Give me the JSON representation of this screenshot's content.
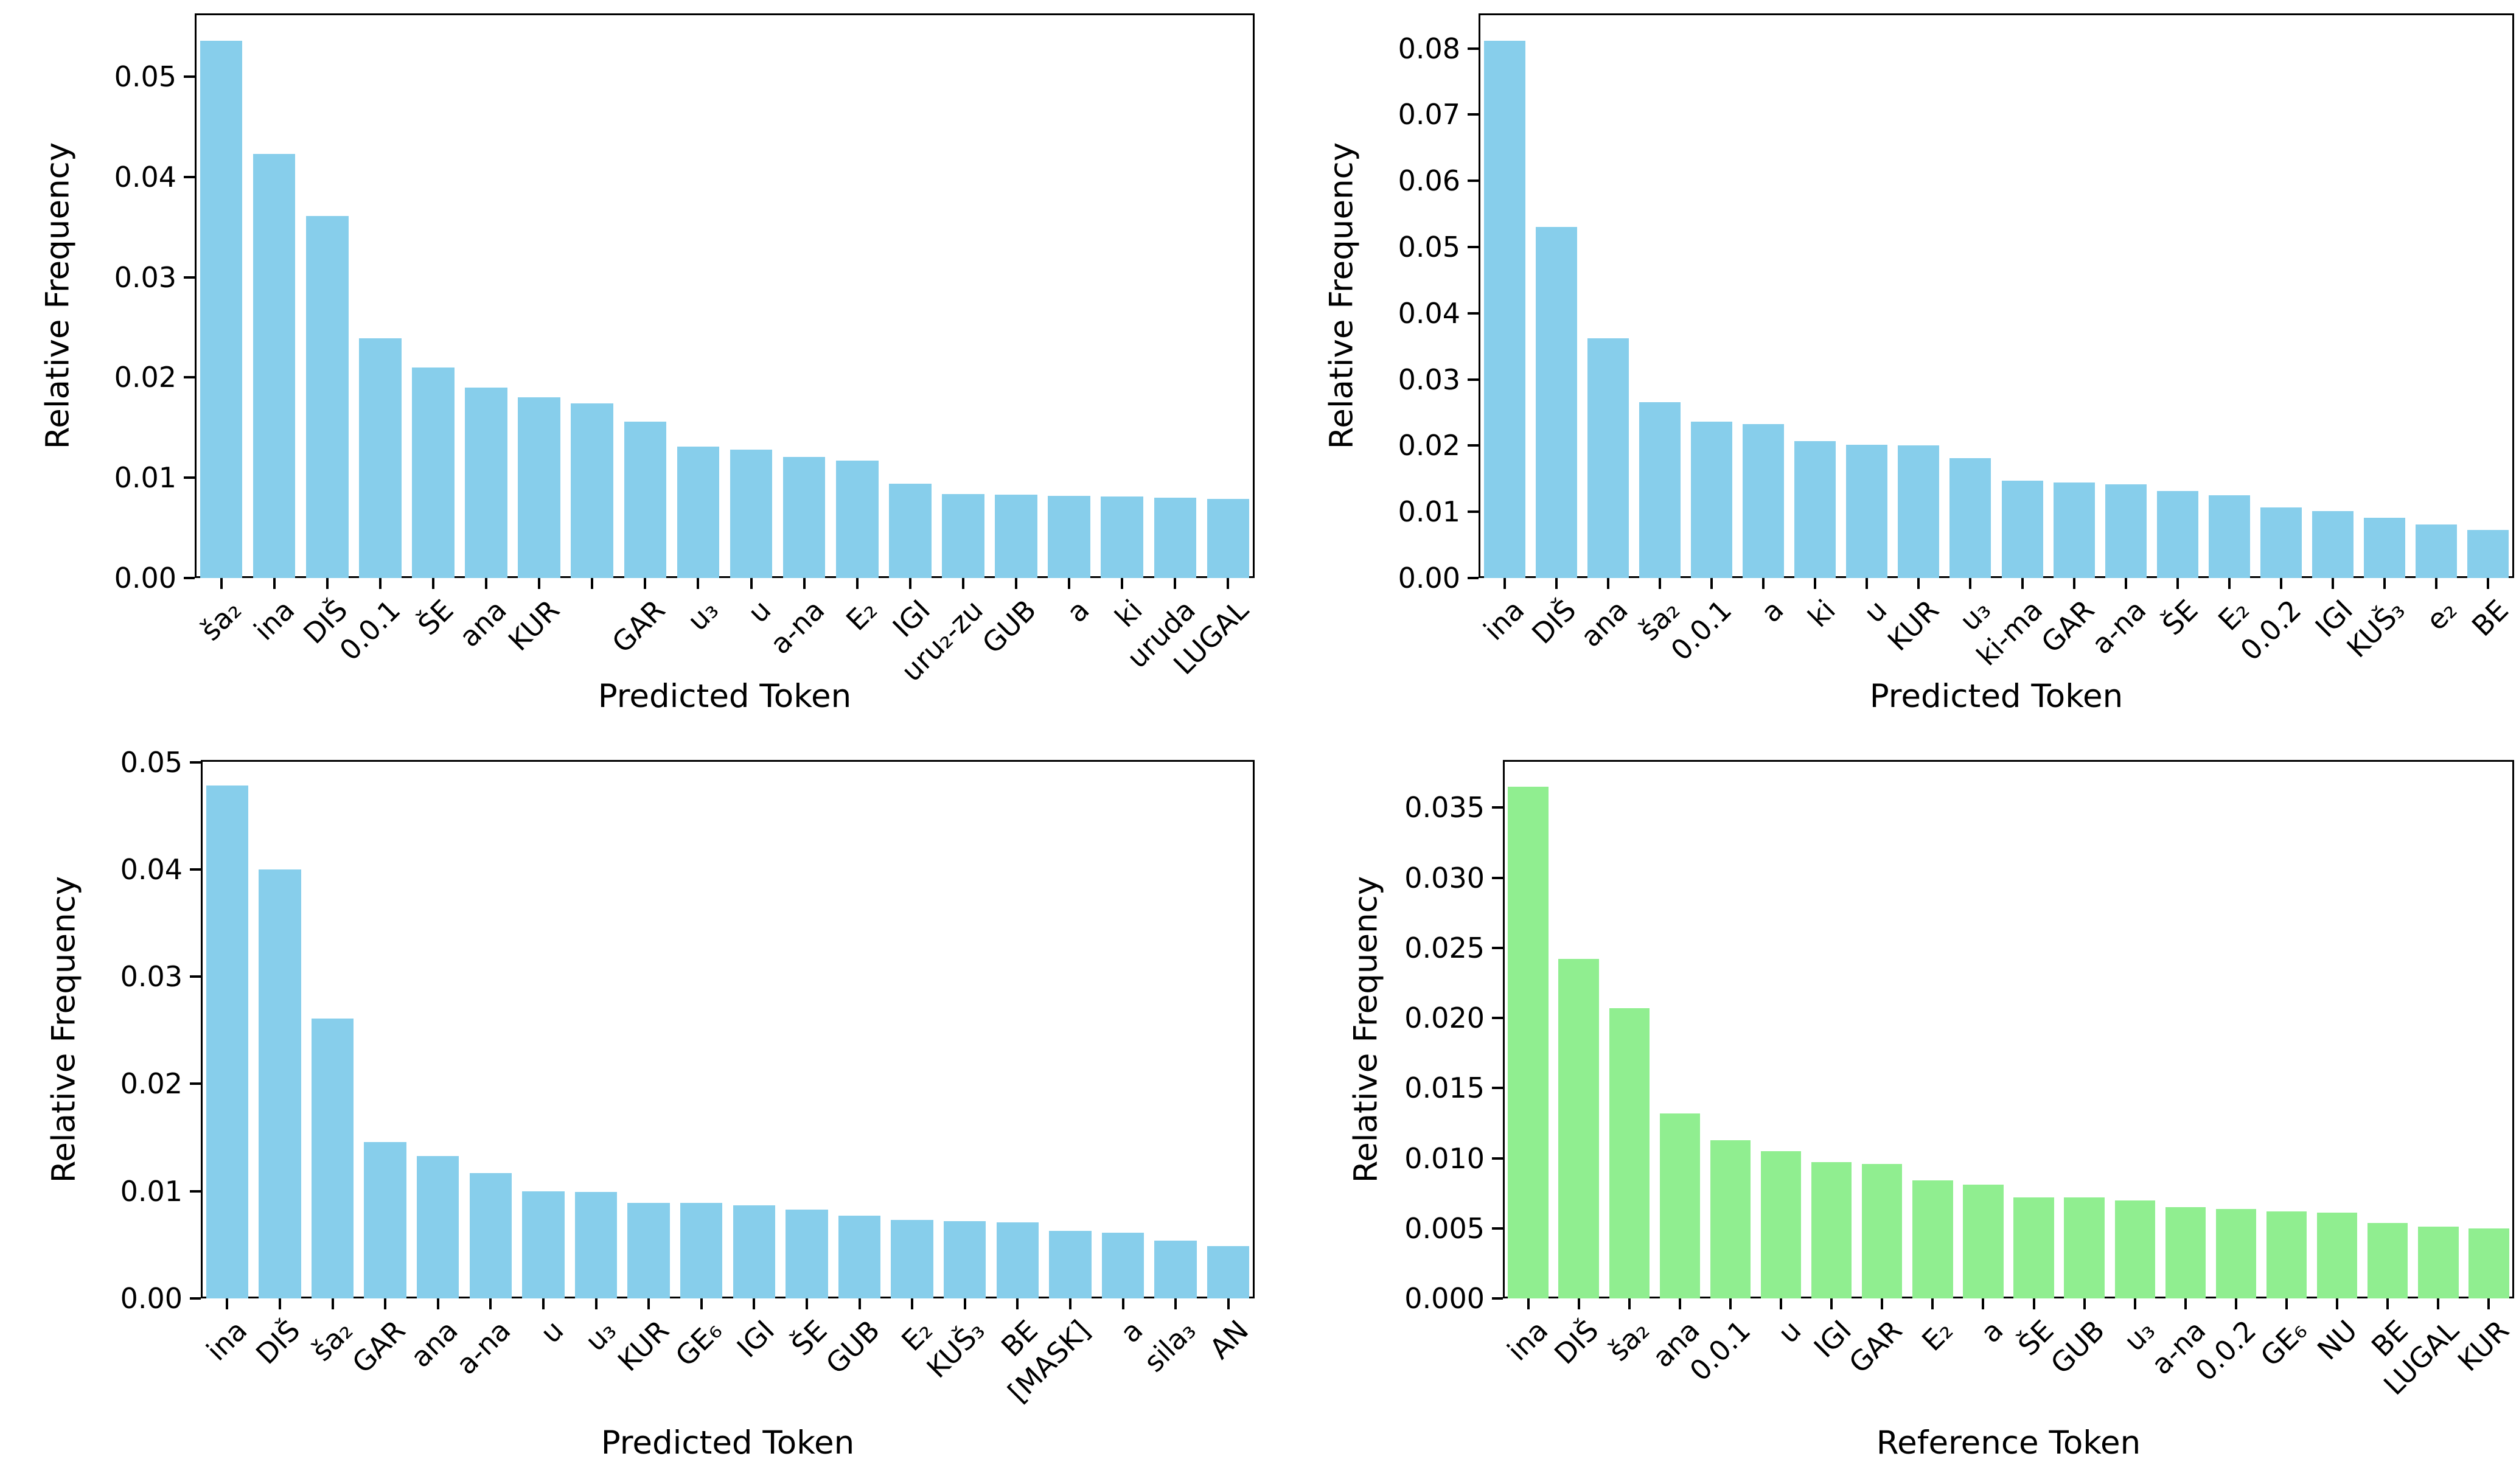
{
  "figure": {
    "background_color": "#ffffff",
    "text_color": "#000000",
    "spine_color": "#000000"
  },
  "chart_data": [
    {
      "type": "bar",
      "position": "top-left",
      "title": "",
      "xlabel": "Predicted Token",
      "ylabel": "Relative Frequency",
      "bar_color": "#87CEEB",
      "grid": false,
      "legend": null,
      "ylim": [
        0,
        0.0563
      ],
      "ytick_values": [
        0,
        0.01,
        0.02,
        0.03,
        0.04,
        0.05
      ],
      "ytick_labels": [
        "0.00",
        "0.01",
        "0.02",
        "0.03",
        "0.04",
        "0.05"
      ],
      "categories": [
        "ša₂",
        "ina",
        "DIŠ",
        "0.0.1",
        "ŠE",
        "ana",
        "KUR",
        "",
        "GAR",
        "u₃",
        "u",
        "a-na",
        "E₂",
        "IGI",
        "uru₂-zu",
        "GUB",
        "a",
        "ki",
        "uruda",
        "LUGAL"
      ],
      "values": [
        0.0536,
        0.0423,
        0.0361,
        0.0239,
        0.021,
        0.019,
        0.018,
        0.0174,
        0.0156,
        0.0131,
        0.0128,
        0.0121,
        0.0117,
        0.0094,
        0.0084,
        0.0083,
        0.0082,
        0.0081,
        0.008,
        0.0079
      ]
    },
    {
      "type": "bar",
      "position": "top-right",
      "title": "",
      "xlabel": "Predicted Token",
      "ylabel": "Relative Frequency",
      "bar_color": "#87CEEB",
      "grid": false,
      "legend": null,
      "ylim": [
        0,
        0.0853
      ],
      "ytick_values": [
        0,
        0.01,
        0.02,
        0.03,
        0.04,
        0.05,
        0.06,
        0.07,
        0.08
      ],
      "ytick_labels": [
        "0.00",
        "0.01",
        "0.02",
        "0.03",
        "0.04",
        "0.05",
        "0.06",
        "0.07",
        "0.08"
      ],
      "categories": [
        "ina",
        "DIŠ",
        "ana",
        "ša₂",
        "0.0.1",
        "a",
        "ki",
        "u",
        "KUR",
        "u₃",
        "ki-ma",
        "GAR",
        "a-na",
        "ŠE",
        "E₂",
        "0.0.2",
        "IGI",
        "KUŠ₃",
        "e₂",
        "BE"
      ],
      "values": [
        0.0812,
        0.053,
        0.0362,
        0.0266,
        0.0236,
        0.0233,
        0.0207,
        0.0201,
        0.02,
        0.0181,
        0.0147,
        0.0144,
        0.0142,
        0.0131,
        0.0125,
        0.0107,
        0.0101,
        0.0091,
        0.0081,
        0.0073
      ]
    },
    {
      "type": "bar",
      "position": "bottom-left",
      "title": "",
      "xlabel": "Predicted Token",
      "ylabel": "Relative Frequency",
      "bar_color": "#87CEEB",
      "grid": false,
      "legend": null,
      "ylim": [
        0,
        0.0502
      ],
      "ytick_values": [
        0,
        0.01,
        0.02,
        0.03,
        0.04,
        0.05
      ],
      "ytick_labels": [
        "0.00",
        "0.01",
        "0.02",
        "0.03",
        "0.04",
        "0.05"
      ],
      "categories": [
        "ina",
        "DIŠ",
        "ša₂",
        "GAR",
        "ana",
        "a-na",
        "u",
        "u₃",
        "KUR",
        "GE₆",
        "IGI",
        "ŠE",
        "GUB",
        "E₂",
        "KUŠ₃",
        "BE",
        "[MASK]",
        "a",
        "sila₃",
        "AN"
      ],
      "values": [
        0.0478,
        0.04,
        0.0261,
        0.0146,
        0.0133,
        0.0117,
        0.01,
        0.0099,
        0.0089,
        0.0089,
        0.0087,
        0.0083,
        0.0077,
        0.0073,
        0.0072,
        0.0071,
        0.0063,
        0.0061,
        0.0054,
        0.0049
      ]
    },
    {
      "type": "bar",
      "position": "bottom-right",
      "title": "",
      "xlabel": "Reference Token",
      "ylabel": "Relative Frequency",
      "bar_color": "#90EE90",
      "grid": false,
      "legend": null,
      "ylim": [
        0,
        0.0384
      ],
      "ytick_values": [
        0,
        0.005,
        0.01,
        0.015,
        0.02,
        0.025,
        0.03,
        0.035
      ],
      "ytick_labels": [
        "0.000",
        "0.005",
        "0.010",
        "0.015",
        "0.020",
        "0.025",
        "0.030",
        "0.035"
      ],
      "categories": [
        "ina",
        "DIŠ",
        "ša₂",
        "ana",
        "0.0.1",
        "u",
        "IGI",
        "GAR",
        "E₂",
        "a",
        "ŠE",
        "GUB",
        "u₃",
        "a-na",
        "0.0.2",
        "GE₆",
        "NU",
        "BE",
        "LUGAL",
        "KUR"
      ],
      "values": [
        0.0365,
        0.0242,
        0.0207,
        0.0132,
        0.0113,
        0.0105,
        0.0097,
        0.0096,
        0.0084,
        0.0081,
        0.0072,
        0.0072,
        0.007,
        0.0065,
        0.0064,
        0.0062,
        0.0061,
        0.0054,
        0.0051,
        0.005
      ]
    }
  ]
}
